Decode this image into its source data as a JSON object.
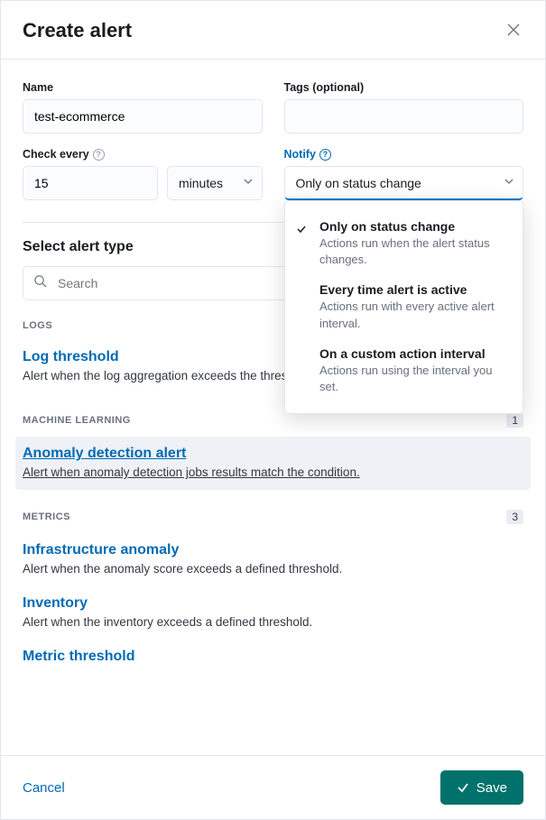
{
  "header": {
    "title": "Create alert"
  },
  "fields": {
    "name_label": "Name",
    "name_value": "test-ecommerce",
    "tags_label": "Tags (optional)",
    "tags_value": "",
    "check_label": "Check every",
    "check_value": "15",
    "check_unit": "minutes",
    "notify_label": "Notify",
    "notify_value": "Only on status change"
  },
  "dropdown": {
    "options": [
      {
        "title": "Only on status change",
        "desc": "Actions run when the alert status changes.",
        "selected": true
      },
      {
        "title": "Every time alert is active",
        "desc": "Actions run with every active alert interval.",
        "selected": false
      },
      {
        "title": "On a custom action interval",
        "desc": "Actions run using the interval you set.",
        "selected": false
      }
    ]
  },
  "alert_type": {
    "title": "Select alert type",
    "search_placeholder": "Search",
    "groups": [
      {
        "label": "LOGS",
        "count": null,
        "items": [
          {
            "title": "Log threshold",
            "desc": "Alert when the log aggregation exceeds the threshold.",
            "selected": false
          }
        ]
      },
      {
        "label": "MACHINE LEARNING",
        "count": "1",
        "items": [
          {
            "title": "Anomaly detection alert",
            "desc": "Alert when anomaly detection jobs results match the condition.",
            "selected": true
          }
        ]
      },
      {
        "label": "METRICS",
        "count": "3",
        "items": [
          {
            "title": "Infrastructure anomaly",
            "desc": "Alert when the anomaly score exceeds a defined threshold.",
            "selected": false
          },
          {
            "title": "Inventory",
            "desc": "Alert when the inventory exceeds a defined threshold.",
            "selected": false
          },
          {
            "title": "Metric threshold",
            "desc": "",
            "selected": false
          }
        ]
      }
    ]
  },
  "footer": {
    "cancel": "Cancel",
    "save": "Save"
  },
  "colors": {
    "accent": "#006bb4",
    "save_bg": "#00726b"
  }
}
